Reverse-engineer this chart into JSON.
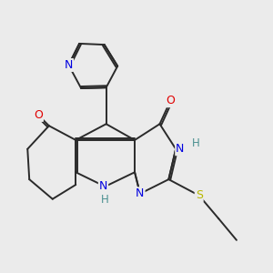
{
  "background_color": "#ebebeb",
  "bond_color": "#2a2a2a",
  "atom_colors": {
    "N": "#0000e0",
    "O": "#e00000",
    "S": "#b8b800",
    "H_color": "#4a9090"
  },
  "figsize": [
    3.0,
    3.0
  ],
  "dpi": 100
}
